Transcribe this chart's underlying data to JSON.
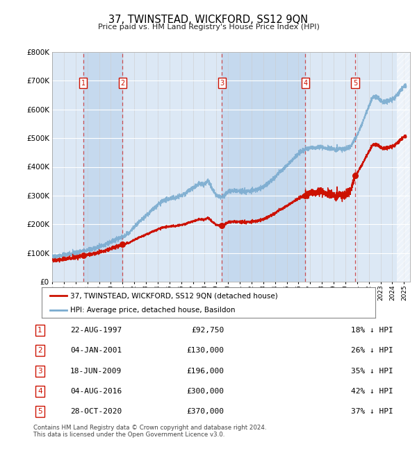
{
  "title": "37, TWINSTEAD, WICKFORD, SS12 9QN",
  "subtitle": "Price paid vs. HM Land Registry's House Price Index (HPI)",
  "ylim": [
    0,
    800000
  ],
  "yticks": [
    0,
    100000,
    200000,
    300000,
    400000,
    500000,
    600000,
    700000,
    800000
  ],
  "ytick_labels": [
    "£0",
    "£100K",
    "£200K",
    "£300K",
    "£400K",
    "£500K",
    "£600K",
    "£700K",
    "£800K"
  ],
  "xlim_start": 1995.0,
  "xlim_end": 2025.5,
  "sale_dates": [
    1997.64,
    2001.01,
    2009.46,
    2016.59,
    2020.83
  ],
  "sale_prices": [
    92750,
    130000,
    196000,
    300000,
    370000
  ],
  "sale_labels": [
    "1",
    "2",
    "3",
    "4",
    "5"
  ],
  "sale_date_strs": [
    "22-AUG-1997",
    "04-JAN-2001",
    "18-JUN-2009",
    "04-AUG-2016",
    "28-OCT-2020"
  ],
  "sale_price_strs": [
    "£92,750",
    "£130,000",
    "£196,000",
    "£300,000",
    "£370,000"
  ],
  "sale_pct_strs": [
    "18% ↓ HPI",
    "26% ↓ HPI",
    "35% ↓ HPI",
    "42% ↓ HPI",
    "37% ↓ HPI"
  ],
  "hpi_color": "#7aabcf",
  "price_color": "#cc1100",
  "legend_label_price": "37, TWINSTEAD, WICKFORD, SS12 9QN (detached house)",
  "legend_label_hpi": "HPI: Average price, detached house, Basildon",
  "footer1": "Contains HM Land Registry data © Crown copyright and database right 2024.",
  "footer2": "This data is licensed under the Open Government Licence v3.0.",
  "plot_bg_color": "#dce8f5",
  "shade_band_color": "#c5d9ee",
  "hatch_color": "#cccccc"
}
